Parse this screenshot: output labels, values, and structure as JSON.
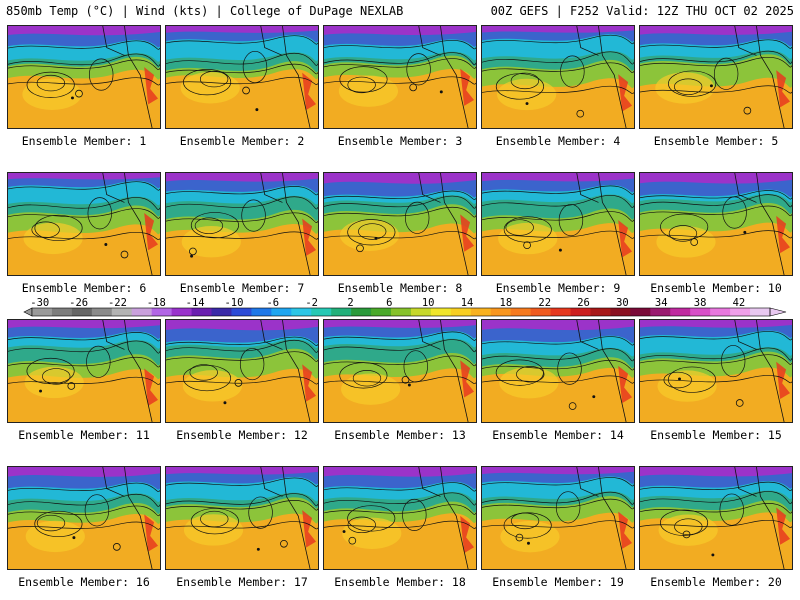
{
  "header": {
    "left": "850mb Temp (°C) | Wind (kts) | College of DuPage NEXLAB",
    "right": "00Z GEFS | F252 Valid: 12Z THU OCT 02 2025"
  },
  "members": [
    {
      "label": "Ensemble Member: 1"
    },
    {
      "label": "Ensemble Member: 2"
    },
    {
      "label": "Ensemble Member: 3"
    },
    {
      "label": "Ensemble Member: 4"
    },
    {
      "label": "Ensemble Member: 5"
    },
    {
      "label": "Ensemble Member: 6"
    },
    {
      "label": "Ensemble Member: 7"
    },
    {
      "label": "Ensemble Member: 8"
    },
    {
      "label": "Ensemble Member: 9"
    },
    {
      "label": "Ensemble Member: 10"
    },
    {
      "label": "Ensemble Member: 11"
    },
    {
      "label": "Ensemble Member: 12"
    },
    {
      "label": "Ensemble Member: 13"
    },
    {
      "label": "Ensemble Member: 14"
    },
    {
      "label": "Ensemble Member: 15"
    },
    {
      "label": "Ensemble Member: 16"
    },
    {
      "label": "Ensemble Member: 17"
    },
    {
      "label": "Ensemble Member: 18"
    },
    {
      "label": "Ensemble Member: 19"
    },
    {
      "label": "Ensemble Member: 20"
    }
  ],
  "colorbar": {
    "tick_labels": [
      "-30",
      "-26",
      "-22",
      "-18",
      "-14",
      "-10",
      "-6",
      "-2",
      "2",
      "6",
      "10",
      "14",
      "18",
      "22",
      "26",
      "30",
      "34",
      "38",
      "42"
    ],
    "colors": [
      "#9a9a9a",
      "#7d7d7d",
      "#666666",
      "#8a8a8a",
      "#b3b3b3",
      "#c9a0dc",
      "#b266e6",
      "#9933cc",
      "#6a1fb0",
      "#3a2aa8",
      "#2c4bd6",
      "#1f78e8",
      "#1fa6f0",
      "#2cc6e6",
      "#26c9b4",
      "#22b07a",
      "#2a9a3a",
      "#4aaa2a",
      "#86c22a",
      "#c6d82a",
      "#f0e62a",
      "#f8cf22",
      "#f8b21f",
      "#f8961e",
      "#f67a1e",
      "#ef5a1e",
      "#e6381e",
      "#cc1e1e",
      "#a81818",
      "#8a1020",
      "#7a0a38",
      "#9a1a70",
      "#c02aa0",
      "#d850c8",
      "#e878de",
      "#f0a0ea",
      "#e8c8f0"
    ]
  }
}
